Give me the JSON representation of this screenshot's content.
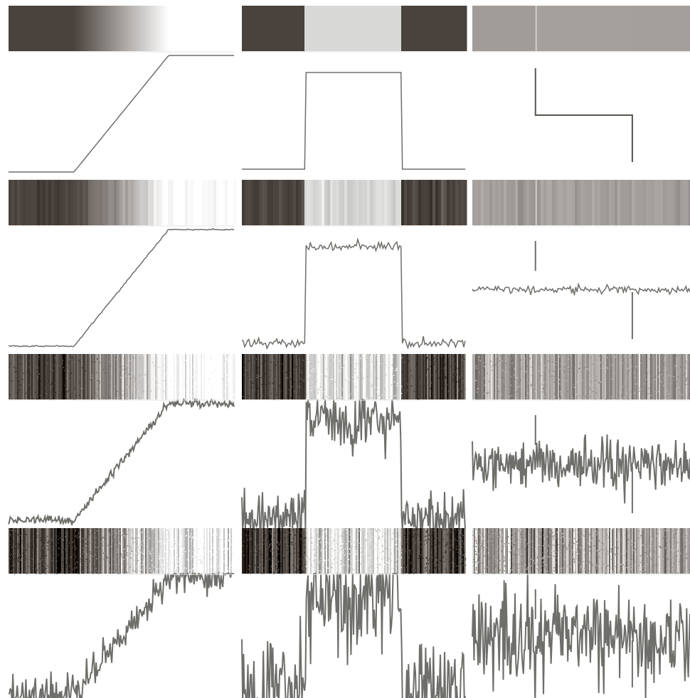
{
  "colors": {
    "dark": "#4a423c",
    "light": "#d8d8d6",
    "mid": "#a09c98",
    "white": "#ffffff",
    "trace": "#6e6e6a"
  },
  "columns": [
    {
      "name": "ramp-edge"
    },
    {
      "name": "bar-step"
    },
    {
      "name": "small-step"
    }
  ],
  "rows": [
    {
      "name": "noise-free",
      "noise_level": 0
    },
    {
      "name": "low-noise",
      "noise_level": 1
    },
    {
      "name": "medium-noise",
      "noise_level": 2
    },
    {
      "name": "high-noise",
      "noise_level": 3
    }
  ]
}
